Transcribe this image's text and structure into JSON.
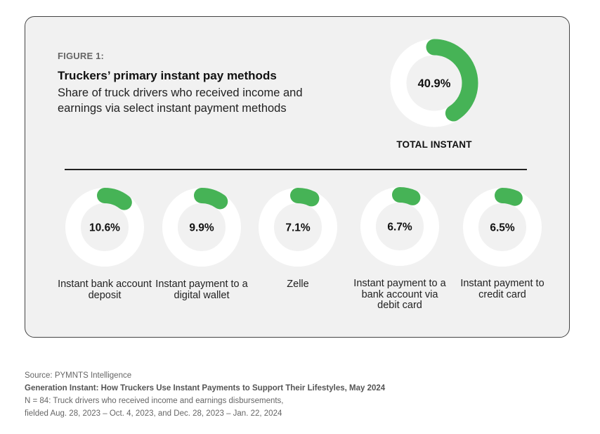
{
  "figure": {
    "label": "FIGURE 1:",
    "title": "Truckers’ primary instant pay methods",
    "subtitle": "Share of truck drivers who received income and earnings via select instant payment methods"
  },
  "chart_data": {
    "type": "donut",
    "colors": {
      "filled": "#46b356",
      "track": "#ffffff"
    },
    "total": {
      "label": "TOTAL INSTANT",
      "value": 40.9,
      "value_label": "40.9%"
    },
    "categories": [
      "Instant bank account deposit",
      "Instant payment to a digital wallet",
      "Zelle",
      "Instant payment to a bank account via debit card",
      "Instant payment to credit card"
    ],
    "items": [
      {
        "label": "Instant bank account deposit",
        "value": 10.6,
        "value_label": "10.6%"
      },
      {
        "label": "Instant payment to a digital wallet",
        "value": 9.9,
        "value_label": "9.9%"
      },
      {
        "label": "Zelle",
        "value": 7.1,
        "value_label": "7.1%"
      },
      {
        "label": "Instant payment to a bank account via debit card",
        "value": 6.7,
        "value_label": "6.7%"
      },
      {
        "label": "Instant payment to credit card",
        "value": 6.5,
        "value_label": "6.5%"
      }
    ]
  },
  "footer": {
    "source": "Source: PYMNTS Intelligence",
    "report": "Generation Instant: How Truckers Use Instant Payments to Support Their Lifestyles, May 2024",
    "sample": "N = 84: Truck drivers who received income and earnings disbursements,",
    "fielded": "fielded Aug. 28, 2023 – Oct. 4, 2023, and Dec. 28, 2023 – Jan. 22, 2024"
  }
}
